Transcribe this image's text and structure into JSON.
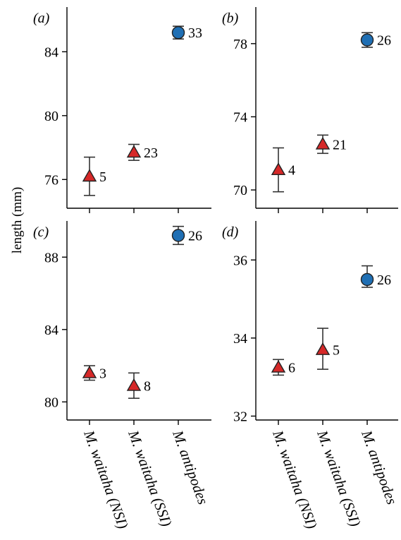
{
  "figure": {
    "ylabel": "length (mm)",
    "colors": {
      "waitaha": "#d62828",
      "antipodes": "#1f6fb4"
    },
    "markers": {
      "waitaha": "triangle",
      "antipodes": "circle"
    }
  },
  "chart_data": [
    {
      "type": "scatter",
      "panel": "(a)",
      "categories": [
        "M. waitaha (NSI)",
        "M. waitaha (SSI)",
        "M. antipodes"
      ],
      "ylim": [
        74.2,
        86.8
      ],
      "yticks": [
        76,
        80,
        84
      ],
      "points": [
        {
          "category": "M. waitaha (NSI)",
          "y": 76.2,
          "err_low": 75.0,
          "err_high": 77.4,
          "n": "5",
          "marker": "triangle"
        },
        {
          "category": "M. waitaha (SSI)",
          "y": 77.7,
          "err_low": 77.2,
          "err_high": 78.2,
          "n": "23",
          "marker": "triangle"
        },
        {
          "category": "M. antipodes",
          "y": 85.2,
          "err_low": 84.8,
          "err_high": 85.6,
          "n": "33",
          "marker": "circle"
        }
      ]
    },
    {
      "type": "scatter",
      "panel": "(b)",
      "categories": [
        "M. waitaha (NSI)",
        "M. waitaha (SSI)",
        "M. antipodes"
      ],
      "ylim": [
        69.0,
        80.0
      ],
      "yticks": [
        70,
        74,
        78
      ],
      "points": [
        {
          "category": "M. waitaha (NSI)",
          "y": 71.1,
          "err_low": 69.9,
          "err_high": 72.3,
          "n": "4",
          "marker": "triangle"
        },
        {
          "category": "M. waitaha (SSI)",
          "y": 72.5,
          "err_low": 72.0,
          "err_high": 73.0,
          "n": "21",
          "marker": "triangle"
        },
        {
          "category": "M. antipodes",
          "y": 78.2,
          "err_low": 77.8,
          "err_high": 78.6,
          "n": "26",
          "marker": "circle"
        }
      ]
    },
    {
      "type": "scatter",
      "panel": "(c)",
      "categories": [
        "M. waitaha (NSI)",
        "M. waitaha (SSI)",
        "M. antipodes"
      ],
      "ylim": [
        79.0,
        90.0
      ],
      "yticks": [
        80,
        84,
        88
      ],
      "points": [
        {
          "category": "M. waitaha (NSI)",
          "y": 81.6,
          "err_low": 81.2,
          "err_high": 82.0,
          "n": "3",
          "marker": "triangle"
        },
        {
          "category": "M. waitaha (SSI)",
          "y": 80.9,
          "err_low": 80.2,
          "err_high": 81.6,
          "n": "8",
          "marker": "triangle"
        },
        {
          "category": "M. antipodes",
          "y": 89.2,
          "err_low": 88.7,
          "err_high": 89.7,
          "n": "26",
          "marker": "circle"
        }
      ]
    },
    {
      "type": "scatter",
      "panel": "(d)",
      "categories": [
        "M. waitaha (NSI)",
        "M. waitaha (SSI)",
        "M. antipodes"
      ],
      "ylim": [
        31.9,
        37.0
      ],
      "yticks": [
        32,
        34,
        36
      ],
      "points": [
        {
          "category": "M. waitaha (NSI)",
          "y": 33.25,
          "err_low": 33.05,
          "err_high": 33.45,
          "n": "6",
          "marker": "triangle"
        },
        {
          "category": "M. waitaha (SSI)",
          "y": 33.7,
          "err_low": 33.2,
          "err_high": 34.25,
          "n": "5",
          "marker": "triangle"
        },
        {
          "category": "M. antipodes",
          "y": 35.5,
          "err_low": 35.3,
          "err_high": 35.85,
          "n": "26",
          "marker": "circle"
        }
      ]
    }
  ]
}
